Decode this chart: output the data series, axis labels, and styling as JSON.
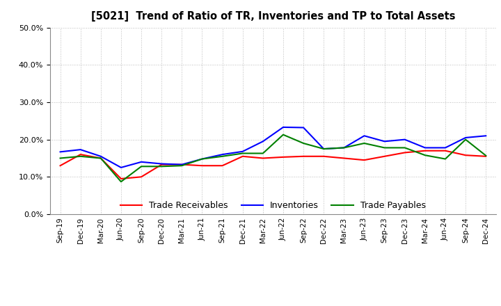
{
  "title": "[5021]  Trend of Ratio of TR, Inventories and TP to Total Assets",
  "x_labels": [
    "Sep-19",
    "Dec-19",
    "Mar-20",
    "Jun-20",
    "Sep-20",
    "Dec-20",
    "Mar-21",
    "Jun-21",
    "Sep-21",
    "Dec-21",
    "Mar-22",
    "Jun-22",
    "Sep-22",
    "Dec-22",
    "Mar-23",
    "Jun-23",
    "Sep-23",
    "Dec-23",
    "Mar-24",
    "Jun-24",
    "Sep-24",
    "Dec-24"
  ],
  "trade_receivables": [
    0.13,
    0.16,
    0.15,
    0.095,
    0.1,
    0.133,
    0.133,
    0.13,
    0.13,
    0.155,
    0.15,
    0.153,
    0.155,
    0.155,
    0.15,
    0.145,
    0.155,
    0.165,
    0.17,
    0.17,
    0.158,
    0.155
  ],
  "inventories": [
    0.167,
    0.173,
    0.155,
    0.125,
    0.14,
    0.135,
    0.133,
    0.148,
    0.16,
    0.168,
    0.195,
    0.233,
    0.232,
    0.175,
    0.178,
    0.21,
    0.195,
    0.2,
    0.178,
    0.178,
    0.205,
    0.21
  ],
  "trade_payables": [
    0.15,
    0.155,
    0.15,
    0.087,
    0.128,
    0.128,
    0.13,
    0.148,
    0.155,
    0.163,
    0.163,
    0.213,
    0.19,
    0.175,
    0.178,
    0.19,
    0.178,
    0.178,
    0.158,
    0.148,
    0.2,
    0.157
  ],
  "tr_color": "#FF0000",
  "inv_color": "#0000FF",
  "tp_color": "#008000",
  "ylim": [
    0.0,
    0.5
  ],
  "yticks": [
    0.0,
    0.1,
    0.2,
    0.3,
    0.4,
    0.5
  ],
  "legend_labels": [
    "Trade Receivables",
    "Inventories",
    "Trade Payables"
  ],
  "line_width": 1.5,
  "background_color": "#FFFFFF",
  "grid_color": "#BBBBBB"
}
